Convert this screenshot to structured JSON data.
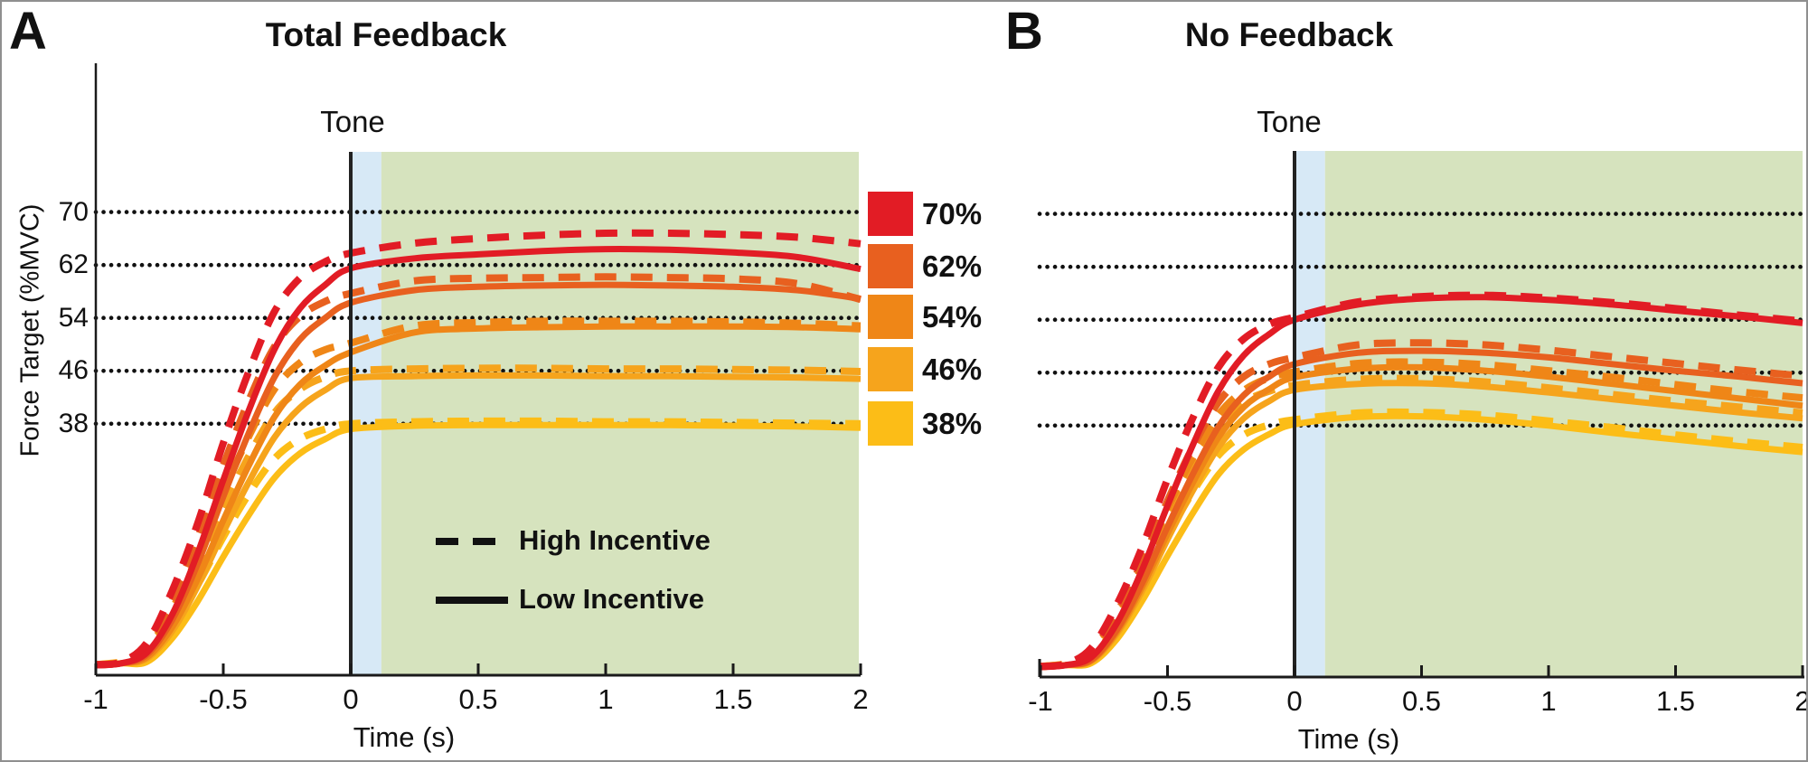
{
  "figure": {
    "panel_a_letter": "A",
    "panel_b_letter": "B"
  },
  "colors": {
    "band_green": "#D6E3BE",
    "band_blue": "#D7E9F6",
    "tone_line": "#222222",
    "axis": "#1a1a1a",
    "gridline": "#111111",
    "border_gray": "#8f8f8f",
    "target_70": "#E21C25",
    "target_62": "#E8601F",
    "target_54": "#EF8617",
    "target_46": "#F6A41C",
    "target_38": "#FCBD17"
  },
  "legend_targets": {
    "items": [
      {
        "label": "70%",
        "color": "#E21C25"
      },
      {
        "label": "62%",
        "color": "#E8601F"
      },
      {
        "label": "54%",
        "color": "#EF8617"
      },
      {
        "label": "46%",
        "color": "#F6A41C"
      },
      {
        "label": "38%",
        "color": "#FCBD17"
      }
    ]
  },
  "legend_incentive": {
    "high": "High Incentive",
    "low": "Low Incentive"
  },
  "chart_data": [
    {
      "panel": "A",
      "title": "Total Feedback",
      "type": "line",
      "xlabel": "Time (s)",
      "ylabel": "Force Target (%MVC)",
      "xlim": [
        -1,
        2
      ],
      "ylim": [
        0,
        93
      ],
      "xticks": [
        -1,
        -0.5,
        0,
        0.5,
        1,
        1.5,
        2
      ],
      "yticks": [
        38,
        46,
        54,
        62,
        70
      ],
      "ytick_labels_visible": true,
      "grid": "dotted-horizontal",
      "tone_label": "Tone",
      "tone_time": 0,
      "tone_window": [
        0,
        0.12
      ],
      "response_window": [
        0.12,
        2
      ],
      "x": [
        -1,
        -0.9,
        -0.8,
        -0.7,
        -0.6,
        -0.5,
        -0.4,
        -0.3,
        -0.2,
        -0.1,
        0,
        0.25,
        0.5,
        0.75,
        1,
        1.25,
        1.5,
        1.75,
        2
      ],
      "series": [
        {
          "name": "38% low incentive",
          "target": 38,
          "incentive": "low",
          "line": "solid",
          "color": "#FCBD17",
          "values": [
            1.5,
            1.8,
            2.0,
            5.6,
            11.2,
            17.9,
            24.2,
            29.8,
            33.5,
            35.7,
            37.2,
            37.7,
            37.8,
            37.8,
            37.8,
            37.8,
            37.7,
            37.6,
            37.4
          ]
        },
        {
          "name": "38% high incentive",
          "target": 38,
          "incentive": "high",
          "line": "dashed",
          "color": "#FCBD17",
          "values": [
            1.6,
            2.0,
            3.0,
            7.6,
            13.7,
            20.9,
            27.4,
            32.7,
            35.7,
            37.2,
            38.0,
            38.3,
            38.4,
            38.4,
            38.3,
            38.3,
            38.2,
            38.1,
            38.0
          ]
        },
        {
          "name": "46% low incentive",
          "target": 46,
          "incentive": "low",
          "line": "solid",
          "color": "#F6A41C",
          "values": [
            1.5,
            1.8,
            2.5,
            6.7,
            13.5,
            21.6,
            29.2,
            35.9,
            40.4,
            43.1,
            44.9,
            45.2,
            45.3,
            45.3,
            45.2,
            45.2,
            45.1,
            45.0,
            44.8
          ]
        },
        {
          "name": "46% high incentive",
          "target": 46,
          "incentive": "high",
          "line": "dashed",
          "color": "#F6A41C",
          "values": [
            1.6,
            2.0,
            3.7,
            9.2,
            16.6,
            25.3,
            33.1,
            39.6,
            43.2,
            45.1,
            46.0,
            46.3,
            46.4,
            46.4,
            46.3,
            46.3,
            46.2,
            46.1,
            45.9
          ]
        },
        {
          "name": "54% low incentive",
          "target": 54,
          "incentive": "low",
          "line": "solid",
          "color": "#EF8617",
          "values": [
            1.5,
            1.8,
            2.7,
            7.3,
            14.6,
            23.4,
            31.7,
            39.0,
            43.9,
            46.8,
            48.8,
            51.8,
            52.4,
            52.6,
            52.7,
            52.7,
            52.7,
            52.6,
            52.3
          ]
        },
        {
          "name": "54% high incentive",
          "target": 54,
          "incentive": "high",
          "line": "dashed",
          "color": "#EF8617",
          "values": [
            1.6,
            2.0,
            4.0,
            10.0,
            18.1,
            27.6,
            36.1,
            43.2,
            47.2,
            49.2,
            50.2,
            52.8,
            53.3,
            53.5,
            53.5,
            53.5,
            53.4,
            53.2,
            52.8
          ]
        },
        {
          "name": "62% low incentive",
          "target": 62,
          "incentive": "low",
          "line": "solid",
          "color": "#E8601F",
          "values": [
            1.5,
            1.8,
            3.1,
            8.4,
            16.9,
            27.0,
            36.6,
            45.0,
            50.7,
            54.0,
            56.3,
            58.2,
            58.7,
            58.9,
            59.0,
            58.9,
            58.7,
            58.2,
            56.9
          ]
        },
        {
          "name": "62% high incentive",
          "target": 62,
          "incentive": "high",
          "line": "dashed",
          "color": "#E8601F",
          "values": [
            1.6,
            2.0,
            4.6,
            11.5,
            20.8,
            31.7,
            41.5,
            49.6,
            54.2,
            56.5,
            57.7,
            59.6,
            60.0,
            60.1,
            60.2,
            60.1,
            59.9,
            59.2,
            56.8
          ]
        },
        {
          "name": "70% low incentive",
          "target": 70,
          "incentive": "low",
          "line": "solid",
          "color": "#E21C25",
          "values": [
            1.5,
            1.8,
            3.4,
            9.2,
            18.5,
            29.5,
            40.0,
            49.2,
            55.4,
            59.0,
            61.5,
            63.0,
            63.6,
            64.1,
            64.4,
            64.3,
            63.9,
            63.2,
            61.4
          ]
        },
        {
          "name": "70% high incentive",
          "target": 70,
          "incentive": "high",
          "line": "dashed",
          "color": "#E21C25",
          "values": [
            1.6,
            2.0,
            4.9,
            12.8,
            23.0,
            35.1,
            45.9,
            54.9,
            60.0,
            62.5,
            63.8,
            65.3,
            66.0,
            66.5,
            66.8,
            66.8,
            66.6,
            66.2,
            65.2
          ]
        }
      ]
    },
    {
      "panel": "B",
      "title": "No Feedback",
      "type": "line",
      "xlabel": "Time (s)",
      "ylabel": "",
      "xlim": [
        -1,
        2
      ],
      "ylim": [
        0,
        93
      ],
      "xticks": [
        -1,
        -0.5,
        0,
        0.5,
        1,
        1.5,
        2
      ],
      "yticks": [
        38,
        46,
        54,
        62,
        70
      ],
      "ytick_labels_visible": false,
      "grid": "dotted-horizontal",
      "tone_label": "Tone",
      "tone_time": 0,
      "tone_window": [
        0,
        0.12
      ],
      "response_window": [
        0.12,
        2
      ],
      "x": [
        -1,
        -0.9,
        -0.8,
        -0.7,
        -0.6,
        -0.5,
        -0.4,
        -0.3,
        -0.2,
        -0.1,
        0,
        0.25,
        0.5,
        0.75,
        1,
        1.25,
        1.5,
        1.75,
        2
      ],
      "series": [
        {
          "name": "38% low incentive",
          "target": 38,
          "incentive": "low",
          "line": "solid",
          "color": "#FCBD17",
          "values": [
            1.5,
            1.8,
            2.1,
            5.7,
            11.5,
            18.3,
            24.8,
            30.6,
            34.4,
            36.7,
            38.2,
            39.3,
            39.4,
            38.9,
            38.0,
            36.9,
            35.9,
            34.9,
            34.0
          ]
        },
        {
          "name": "38% high incentive",
          "target": 38,
          "incentive": "high",
          "line": "dashed",
          "color": "#FCBD17",
          "values": [
            1.6,
            2.0,
            3.1,
            7.8,
            14.0,
            21.4,
            28.0,
            33.5,
            36.6,
            38.1,
            38.9,
            39.9,
            40.0,
            39.6,
            38.7,
            37.7,
            36.6,
            35.6,
            34.7
          ]
        },
        {
          "name": "46% low incentive",
          "target": 46,
          "incentive": "low",
          "line": "solid",
          "color": "#F6A41C",
          "values": [
            1.5,
            1.8,
            2.4,
            6.5,
            13.0,
            20.8,
            28.2,
            34.7,
            39.1,
            41.7,
            43.4,
            44.3,
            44.4,
            43.9,
            43.0,
            42.0,
            41.0,
            40.0,
            39.1
          ]
        },
        {
          "name": "46% high incentive",
          "target": 46,
          "incentive": "high",
          "line": "dashed",
          "color": "#F6A41C",
          "values": [
            1.6,
            2.0,
            3.5,
            8.8,
            15.9,
            24.3,
            31.8,
            37.9,
            41.5,
            43.2,
            44.1,
            45.0,
            45.1,
            44.6,
            43.7,
            42.7,
            41.7,
            40.8,
            39.9
          ]
        },
        {
          "name": "54% low incentive",
          "target": 54,
          "incentive": "low",
          "line": "solid",
          "color": "#EF8617",
          "values": [
            1.5,
            1.8,
            2.5,
            6.8,
            13.6,
            21.7,
            29.4,
            36.2,
            40.8,
            43.5,
            45.3,
            46.6,
            46.8,
            46.3,
            45.4,
            44.3,
            43.2,
            42.1,
            41.0
          ]
        },
        {
          "name": "54% high incentive",
          "target": 54,
          "incentive": "high",
          "line": "dashed",
          "color": "#EF8617",
          "values": [
            1.6,
            2.0,
            3.7,
            9.2,
            16.6,
            25.4,
            33.2,
            39.6,
            43.3,
            45.2,
            46.1,
            47.4,
            47.6,
            47.2,
            46.3,
            45.3,
            44.2,
            43.1,
            42.2
          ]
        },
        {
          "name": "62% low incentive",
          "target": 62,
          "incentive": "low",
          "line": "solid",
          "color": "#E8601F",
          "values": [
            1.5,
            1.8,
            2.6,
            7.1,
            14.2,
            22.7,
            30.7,
            37.8,
            42.6,
            45.4,
            47.3,
            49.0,
            49.3,
            49.0,
            48.3,
            47.3,
            46.3,
            45.4,
            44.4
          ]
        },
        {
          "name": "62% high incentive",
          "target": 62,
          "incentive": "high",
          "line": "dashed",
          "color": "#E8601F",
          "values": [
            1.6,
            2.0,
            3.9,
            9.7,
            17.4,
            26.6,
            34.8,
            41.5,
            45.4,
            47.3,
            48.3,
            50.2,
            50.5,
            50.2,
            49.4,
            48.4,
            47.4,
            46.4,
            45.5
          ]
        },
        {
          "name": "70% low incentive",
          "target": 70,
          "incentive": "low",
          "line": "solid",
          "color": "#E21C25",
          "values": [
            1.5,
            1.8,
            3.0,
            8.1,
            16.2,
            25.9,
            35.1,
            43.2,
            48.6,
            51.8,
            54.0,
            56.3,
            57.2,
            57.4,
            57.0,
            56.3,
            55.4,
            54.5,
            53.5
          ]
        },
        {
          "name": "70% high incentive",
          "target": 70,
          "incentive": "high",
          "line": "dashed",
          "color": "#E21C25",
          "values": [
            1.6,
            2.0,
            4.4,
            10.9,
            19.6,
            29.9,
            39.2,
            46.8,
            51.1,
            53.3,
            54.4,
            56.7,
            57.5,
            57.7,
            57.3,
            56.6,
            55.7,
            54.7,
            53.8
          ]
        }
      ]
    }
  ]
}
